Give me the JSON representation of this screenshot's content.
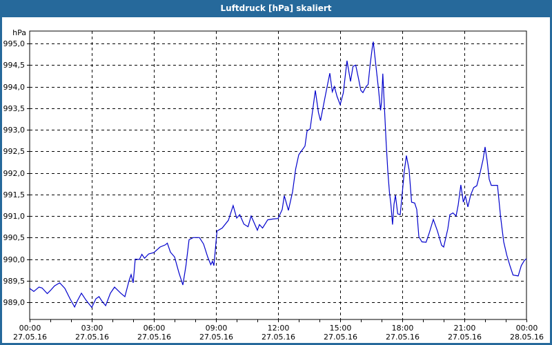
{
  "window": {
    "title": "Luftdruck [hPa] skaliert"
  },
  "colors": {
    "titlebar_bg": "#26699b",
    "titlebar_text": "#ffffff",
    "frame_border": "#26699b",
    "plot_bg": "#ffffff",
    "grid": "#000000",
    "axis": "#000000",
    "text": "#000000",
    "line": "#0000cc"
  },
  "chart_data": {
    "type": "line",
    "title": "Luftdruck [hPa] skaliert",
    "ylabel": "hPa",
    "xlabel": "",
    "grid": "dashed",
    "legend": "none",
    "ylim": [
      988.6,
      995.3
    ],
    "xlim_hours": [
      0,
      24
    ],
    "x_minor_tick_every_hours": 1,
    "yticks": [
      {
        "value": 995.0,
        "label": "995,0"
      },
      {
        "value": 994.5,
        "label": "994,5"
      },
      {
        "value": 994.0,
        "label": "994,0"
      },
      {
        "value": 993.5,
        "label": "993,5"
      },
      {
        "value": 993.0,
        "label": "993,0"
      },
      {
        "value": 992.5,
        "label": "992,5"
      },
      {
        "value": 992.0,
        "label": "992,0"
      },
      {
        "value": 991.5,
        "label": "991,5"
      },
      {
        "value": 991.0,
        "label": "991,0"
      },
      {
        "value": 990.5,
        "label": "990,5"
      },
      {
        "value": 990.0,
        "label": "990,0"
      },
      {
        "value": 989.5,
        "label": "989,5"
      },
      {
        "value": 989.0,
        "label": "989,0"
      }
    ],
    "xticks": [
      {
        "hour": 0,
        "time": "00:00",
        "date": "27.05.16"
      },
      {
        "hour": 3,
        "time": "03:00",
        "date": "27.05.16"
      },
      {
        "hour": 6,
        "time": "06:00",
        "date": "27.05.16"
      },
      {
        "hour": 9,
        "time": "09:00",
        "date": "27.05.16"
      },
      {
        "hour": 12,
        "time": "12:00",
        "date": "27.05.16"
      },
      {
        "hour": 15,
        "time": "15:00",
        "date": "27.05.16"
      },
      {
        "hour": 18,
        "time": "18:00",
        "date": "27.05.16"
      },
      {
        "hour": 21,
        "time": "21:00",
        "date": "27.05.16"
      },
      {
        "hour": 24,
        "time": "00:00",
        "date": "28.05.16"
      }
    ],
    "series": [
      {
        "name": "Luftdruck [hPa]",
        "color": "#0000cc",
        "points": [
          [
            0.0,
            989.32
          ],
          [
            0.2,
            989.25
          ],
          [
            0.45,
            989.35
          ],
          [
            0.6,
            989.33
          ],
          [
            0.85,
            989.2
          ],
          [
            1.0,
            989.27
          ],
          [
            1.2,
            989.38
          ],
          [
            1.45,
            989.45
          ],
          [
            1.7,
            989.32
          ],
          [
            1.95,
            989.08
          ],
          [
            2.17,
            988.89
          ],
          [
            2.3,
            989.03
          ],
          [
            2.5,
            989.21
          ],
          [
            2.72,
            989.05
          ],
          [
            3.0,
            988.88
          ],
          [
            3.2,
            989.08
          ],
          [
            3.35,
            989.13
          ],
          [
            3.5,
            989.02
          ],
          [
            3.67,
            988.92
          ],
          [
            3.9,
            989.21
          ],
          [
            4.1,
            989.35
          ],
          [
            4.4,
            989.21
          ],
          [
            4.6,
            989.13
          ],
          [
            4.8,
            989.5
          ],
          [
            4.9,
            989.64
          ],
          [
            5.0,
            989.45
          ],
          [
            5.1,
            990.0
          ],
          [
            5.3,
            989.99
          ],
          [
            5.42,
            990.11
          ],
          [
            5.55,
            990.02
          ],
          [
            5.75,
            990.12
          ],
          [
            6.0,
            990.15
          ],
          [
            6.3,
            990.28
          ],
          [
            6.55,
            990.33
          ],
          [
            6.65,
            990.37
          ],
          [
            6.8,
            990.16
          ],
          [
            7.0,
            990.05
          ],
          [
            7.2,
            989.7
          ],
          [
            7.4,
            989.4
          ],
          [
            7.55,
            989.85
          ],
          [
            7.7,
            990.45
          ],
          [
            7.9,
            990.5
          ],
          [
            8.2,
            990.5
          ],
          [
            8.4,
            990.35
          ],
          [
            8.6,
            990.05
          ],
          [
            8.75,
            989.87
          ],
          [
            8.83,
            989.95
          ],
          [
            8.9,
            989.85
          ],
          [
            9.05,
            990.65
          ],
          [
            9.3,
            990.72
          ],
          [
            9.6,
            990.9
          ],
          [
            9.83,
            991.24
          ],
          [
            10.0,
            990.95
          ],
          [
            10.15,
            991.03
          ],
          [
            10.35,
            990.81
          ],
          [
            10.55,
            990.75
          ],
          [
            10.7,
            991.0
          ],
          [
            11.0,
            990.67
          ],
          [
            11.1,
            990.8
          ],
          [
            11.25,
            990.72
          ],
          [
            11.5,
            990.91
          ],
          [
            11.75,
            990.93
          ],
          [
            12.0,
            990.94
          ],
          [
            12.2,
            991.15
          ],
          [
            12.3,
            991.47
          ],
          [
            12.5,
            991.13
          ],
          [
            12.7,
            991.56
          ],
          [
            12.85,
            992.09
          ],
          [
            13.0,
            992.42
          ],
          [
            13.15,
            992.52
          ],
          [
            13.3,
            992.62
          ],
          [
            13.4,
            992.97
          ],
          [
            13.55,
            993.02
          ],
          [
            13.8,
            993.91
          ],
          [
            13.95,
            993.4
          ],
          [
            14.05,
            993.21
          ],
          [
            14.3,
            993.83
          ],
          [
            14.5,
            994.31
          ],
          [
            14.62,
            993.88
          ],
          [
            14.72,
            994.0
          ],
          [
            14.85,
            993.77
          ],
          [
            15.0,
            993.58
          ],
          [
            15.15,
            993.85
          ],
          [
            15.33,
            994.6
          ],
          [
            15.5,
            994.12
          ],
          [
            15.62,
            994.47
          ],
          [
            15.75,
            994.5
          ],
          [
            15.88,
            994.2
          ],
          [
            16.0,
            993.91
          ],
          [
            16.1,
            993.86
          ],
          [
            16.25,
            994.0
          ],
          [
            16.35,
            994.05
          ],
          [
            16.45,
            994.52
          ],
          [
            16.55,
            994.9
          ],
          [
            16.6,
            995.04
          ],
          [
            16.7,
            994.6
          ],
          [
            16.85,
            993.95
          ],
          [
            16.95,
            993.45
          ],
          [
            17.0,
            993.64
          ],
          [
            17.06,
            994.3
          ],
          [
            17.15,
            993.4
          ],
          [
            17.22,
            992.71
          ],
          [
            17.3,
            992.05
          ],
          [
            17.38,
            991.55
          ],
          [
            17.45,
            991.27
          ],
          [
            17.53,
            990.8
          ],
          [
            17.6,
            991.27
          ],
          [
            17.67,
            991.48
          ],
          [
            17.78,
            991.05
          ],
          [
            17.9,
            991.03
          ],
          [
            18.0,
            991.53
          ],
          [
            18.1,
            992.05
          ],
          [
            18.2,
            992.4
          ],
          [
            18.33,
            992.07
          ],
          [
            18.45,
            991.32
          ],
          [
            18.6,
            991.3
          ],
          [
            18.7,
            991.15
          ],
          [
            18.8,
            990.52
          ],
          [
            18.95,
            990.4
          ],
          [
            19.15,
            990.39
          ],
          [
            19.3,
            990.6
          ],
          [
            19.5,
            990.92
          ],
          [
            19.7,
            990.65
          ],
          [
            19.9,
            990.32
          ],
          [
            20.0,
            990.28
          ],
          [
            20.2,
            990.7
          ],
          [
            20.3,
            991.03
          ],
          [
            20.45,
            991.07
          ],
          [
            20.6,
            991.0
          ],
          [
            20.7,
            991.25
          ],
          [
            20.83,
            991.72
          ],
          [
            20.95,
            991.32
          ],
          [
            21.05,
            991.46
          ],
          [
            21.17,
            991.21
          ],
          [
            21.3,
            991.48
          ],
          [
            21.45,
            991.66
          ],
          [
            21.6,
            991.7
          ],
          [
            21.75,
            991.98
          ],
          [
            21.9,
            992.3
          ],
          [
            22.0,
            992.6
          ],
          [
            22.1,
            992.28
          ],
          [
            22.2,
            991.85
          ],
          [
            22.3,
            991.71
          ],
          [
            22.6,
            991.71
          ],
          [
            22.75,
            990.98
          ],
          [
            22.9,
            990.4
          ],
          [
            23.05,
            990.09
          ],
          [
            23.2,
            989.85
          ],
          [
            23.35,
            989.63
          ],
          [
            23.6,
            989.61
          ],
          [
            23.75,
            989.85
          ],
          [
            23.9,
            989.97
          ],
          [
            24.0,
            990.01
          ]
        ]
      }
    ]
  }
}
